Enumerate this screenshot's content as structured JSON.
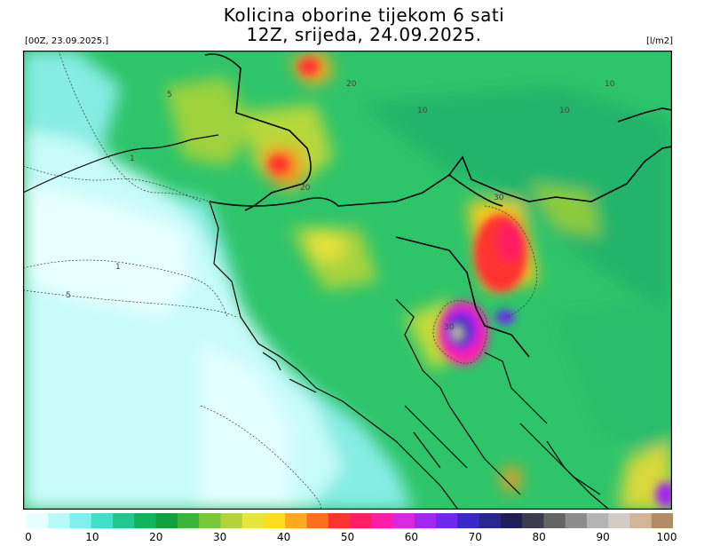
{
  "title": {
    "line1": "Kolicina oborine tijekom 6 sati",
    "line2": "12Z, srijeda, 24.09.2025."
  },
  "run_label": "[00Z, 23.09.2025.]",
  "unit_label": "[l/m2]",
  "contour_labels": [
    "5",
    "10",
    "20",
    "10",
    "10",
    "1",
    "20",
    "30",
    "1",
    "5",
    "30"
  ],
  "colorbar": {
    "ticks": [
      "0",
      "10",
      "20",
      "30",
      "40",
      "50",
      "60",
      "70",
      "80",
      "90",
      "100"
    ],
    "min": 0,
    "max": 100,
    "colors": [
      "#e6ffff",
      "#b8fafa",
      "#7ff0ee",
      "#40e0c8",
      "#20c890",
      "#11b45a",
      "#14a03c",
      "#3cb43c",
      "#78c83c",
      "#b4d23c",
      "#e6e63c",
      "#ffdc1e",
      "#ffaa1e",
      "#ff6e1e",
      "#ff3232",
      "#ff1e64",
      "#ff1eaa",
      "#dc28dc",
      "#a028f0",
      "#6e28f0",
      "#3c28c8",
      "#28288c",
      "#1e1e5a",
      "#3c3c50",
      "#646464",
      "#8c8c8c",
      "#b4b4b4",
      "#d2ccc4",
      "#d2b496",
      "#b48c64"
    ]
  }
}
